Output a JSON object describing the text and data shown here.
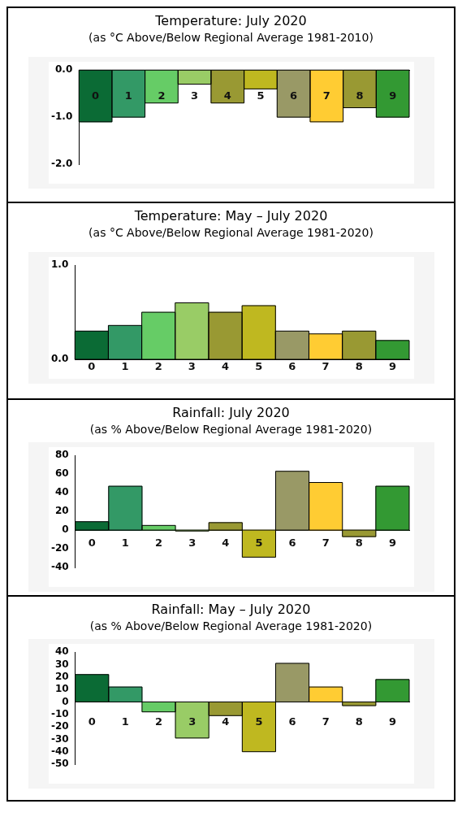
{
  "chart_data": [
    {
      "type": "bar",
      "title": "Temperature: July 2020",
      "subtitle": "(as °C Above/Below Regional Average 1981-2010)",
      "categories": [
        "0",
        "1",
        "2",
        "3",
        "4",
        "5",
        "6",
        "7",
        "8",
        "9"
      ],
      "colors": [
        "#0b6b35",
        "#339966",
        "#66cc66",
        "#99cc66",
        "#999933",
        "#bfb820",
        "#999966",
        "#ffcc33",
        "#999933",
        "#339933"
      ],
      "values": [
        -1.1,
        -1.0,
        -0.7,
        -0.3,
        -0.7,
        -0.4,
        -1.0,
        -1.1,
        -0.8,
        -1.0
      ],
      "ylim": [
        -2,
        0
      ],
      "yticks": [
        {
          "value": -2,
          "label": "-2.0"
        },
        {
          "value": -1,
          "label": "-1.0"
        },
        {
          "value": 0,
          "label": "0.0"
        }
      ]
    },
    {
      "type": "bar",
      "title": "Temperature: May – July 2020",
      "subtitle": "(as °C Above/Below Regional Average 1981-2020)",
      "categories": [
        "0",
        "1",
        "2",
        "3",
        "4",
        "5",
        "6",
        "7",
        "8",
        "9"
      ],
      "colors": [
        "#0b6b35",
        "#339966",
        "#66cc66",
        "#99cc66",
        "#999933",
        "#bfb820",
        "#999966",
        "#ffcc33",
        "#999933",
        "#339933"
      ],
      "values": [
        0.3,
        0.36,
        0.5,
        0.6,
        0.5,
        0.57,
        0.3,
        0.27,
        0.3,
        0.2
      ],
      "ylim": [
        0,
        1
      ],
      "yticks": [
        {
          "value": 0,
          "label": "0.0"
        },
        {
          "value": 1,
          "label": "1.0"
        }
      ]
    },
    {
      "type": "bar",
      "title": "Rainfall: July 2020",
      "subtitle": "(as % Above/Below Regional Average 1981-2020)",
      "categories": [
        "0",
        "1",
        "2",
        "3",
        "4",
        "5",
        "6",
        "7",
        "8",
        "9"
      ],
      "colors": [
        "#0b6b35",
        "#339966",
        "#66cc66",
        "#99cc66",
        "#999933",
        "#bfb820",
        "#999966",
        "#ffcc33",
        "#999933",
        "#339933"
      ],
      "values": [
        9,
        47,
        5,
        -1,
        8,
        -29,
        63,
        51,
        -7,
        47
      ],
      "ylim": [
        -40,
        80
      ],
      "yticks": [
        -40,
        -20,
        0,
        20,
        40,
        60,
        80
      ]
    },
    {
      "type": "bar",
      "title": "Rainfall: May – July 2020",
      "subtitle": "(as % Above/Below Regional Average 1981-2020)",
      "categories": [
        "0",
        "1",
        "2",
        "3",
        "4",
        "5",
        "6",
        "7",
        "8",
        "9"
      ],
      "colors": [
        "#0b6b35",
        "#339966",
        "#66cc66",
        "#99cc66",
        "#999933",
        "#bfb820",
        "#999966",
        "#ffcc33",
        "#999933",
        "#339933"
      ],
      "values": [
        22,
        12,
        -8,
        -29,
        -11,
        -40,
        31,
        12,
        -3,
        18
      ],
      "ylim": [
        -50,
        40
      ],
      "yticks": [
        -50,
        -40,
        -30,
        -20,
        -10,
        0,
        10,
        20,
        30,
        40
      ]
    }
  ]
}
